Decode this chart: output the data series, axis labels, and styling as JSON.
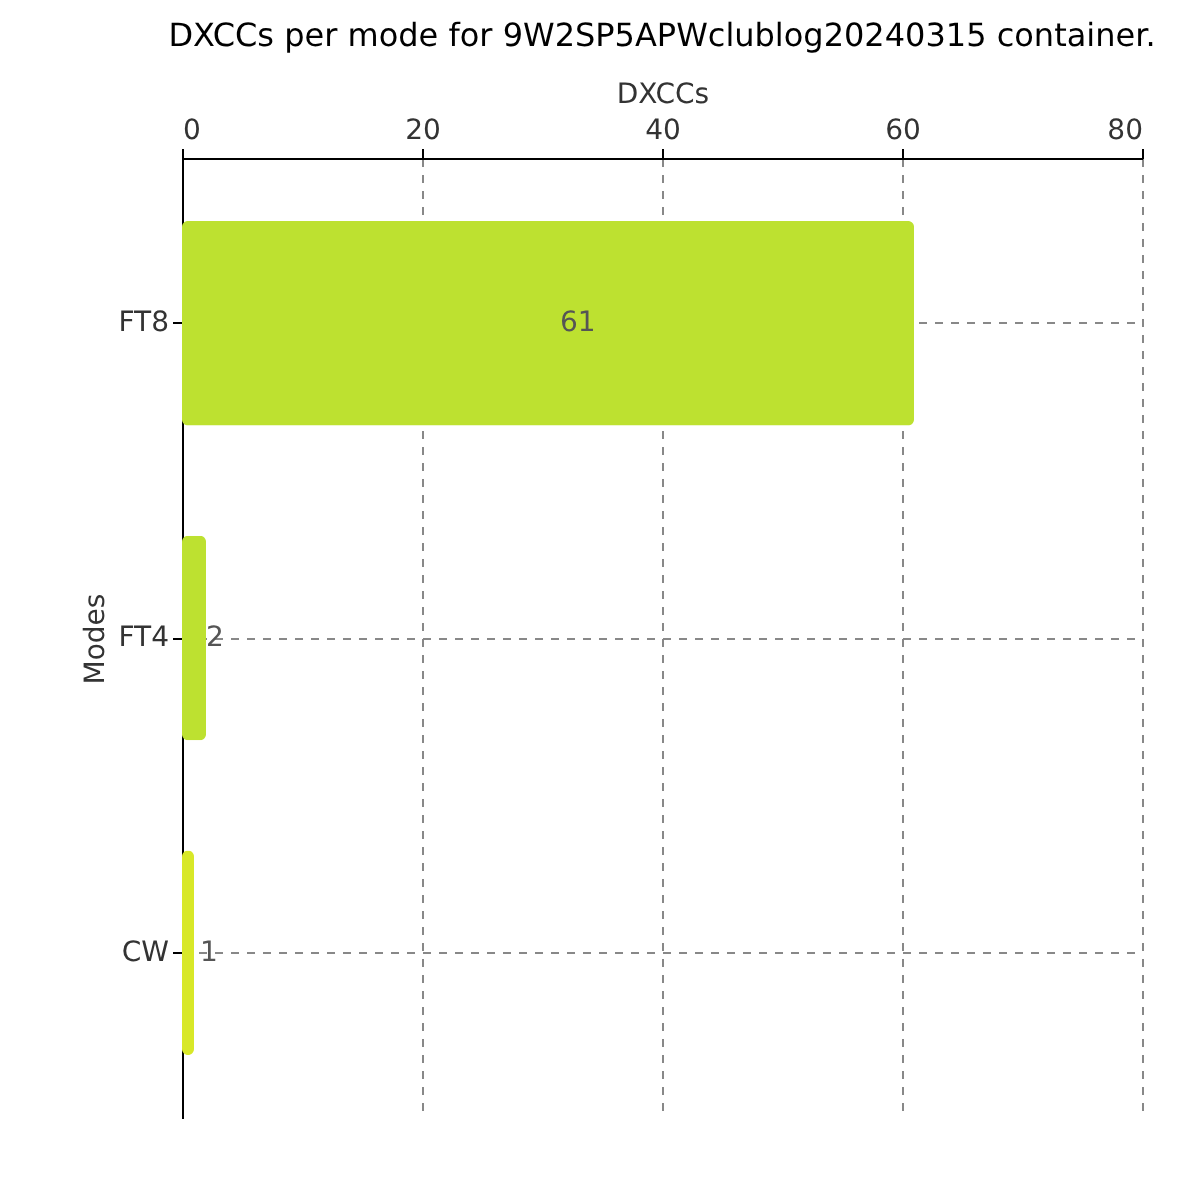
{
  "chart_data": {
    "type": "bar",
    "orientation": "horizontal",
    "title": "DXCCs per mode for 9W2SP5APWclublog20240315 container.",
    "xlabel": "DXCCs",
    "ylabel": "Modes",
    "categories": [
      "FT8",
      "FT4",
      "CW"
    ],
    "values": [
      61,
      2,
      1
    ],
    "colors": [
      "#bde130",
      "#bde130",
      "#d8e828"
    ],
    "xlim": [
      0,
      80
    ],
    "xticks": [
      0,
      20,
      40,
      60,
      80
    ],
    "grid": true,
    "data_labels": true
  }
}
